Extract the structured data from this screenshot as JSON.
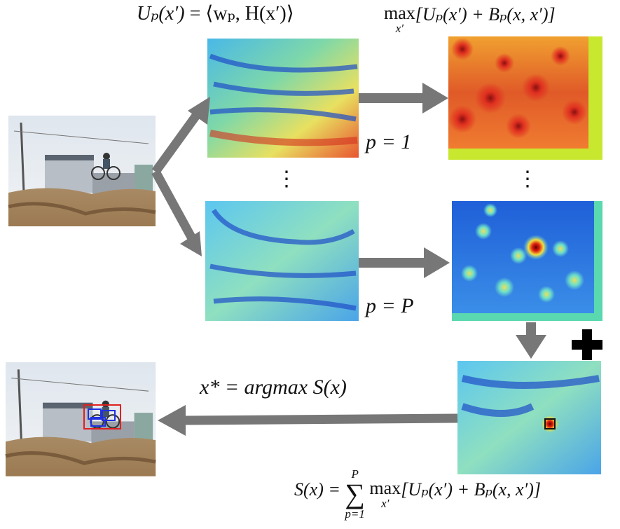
{
  "unary_formula": {
    "lhs": "Uₚ(x′)",
    "rhs": "= ⟨wₚ, H(x′)⟩"
  },
  "max_formula": {
    "op": "max",
    "sub": "x′",
    "body": "[Uₚ(x′) + Bₚ(x, x′)]"
  },
  "part_labels": [
    "p = 1",
    "p = P"
  ],
  "ellipsis": [
    "⋮",
    "⋮"
  ],
  "argmax_formula": "x* = argmax S(x)",
  "sum_formula": {
    "lhs": "S(x) =",
    "sum": "∑",
    "upper": "P",
    "lower": "p=1",
    "op": "max",
    "sub": "x′",
    "body": "[Uₚ(x′) + Bₚ(x, x′)]"
  }
}
